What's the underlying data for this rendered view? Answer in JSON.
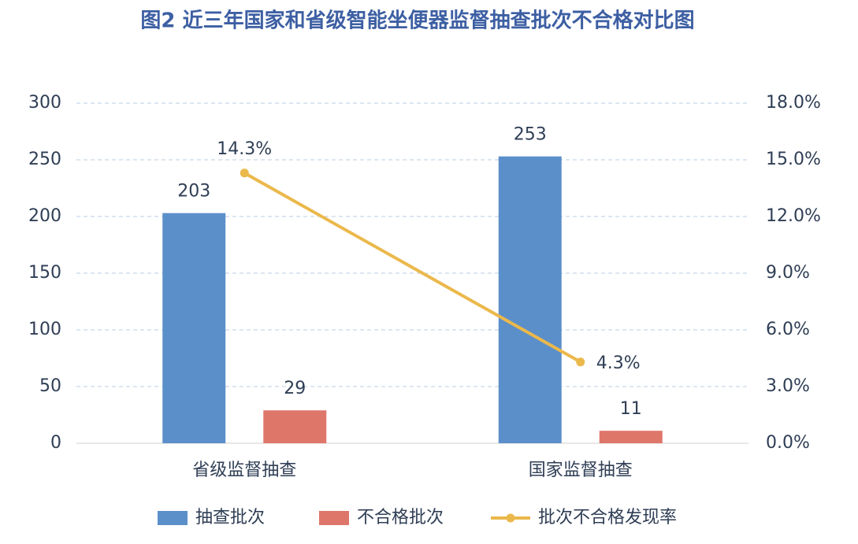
{
  "chart_data": {
    "type": "bar-line",
    "title": "图2  近三年国家和省级智能坐便器监督抽查批次不合格对比图",
    "categories": [
      "省级监督抽查",
      "国家监督抽查"
    ],
    "series": [
      {
        "name": "抽查批次",
        "color": "#5b8fca",
        "type": "bar",
        "values": [
          203,
          253
        ]
      },
      {
        "name": "不合格批次",
        "color": "#df766a",
        "type": "bar",
        "values": [
          29,
          11
        ]
      },
      {
        "name": "批次不合格发现率",
        "color": "#ebb84b",
        "type": "line",
        "axis": "y2",
        "values": [
          14.3,
          4.3
        ],
        "value_labels": [
          "14.3%",
          "4.3%"
        ]
      }
    ],
    "ylim": [
      0,
      300
    ],
    "yticks": [
      0,
      50,
      100,
      150,
      200,
      250,
      300
    ],
    "y2lim": [
      0,
      18
    ],
    "y2ticks": [
      {
        "value": 0,
        "label": "0.0%"
      },
      {
        "value": 3,
        "label": "3.0%"
      },
      {
        "value": 6,
        "label": "6.0%"
      },
      {
        "value": 9,
        "label": "9.0%"
      },
      {
        "value": 12,
        "label": "12.0%"
      },
      {
        "value": 15,
        "label": "15.0%"
      },
      {
        "value": 18,
        "label": "18.0%"
      }
    ],
    "grid": true,
    "legend": "bottom"
  }
}
